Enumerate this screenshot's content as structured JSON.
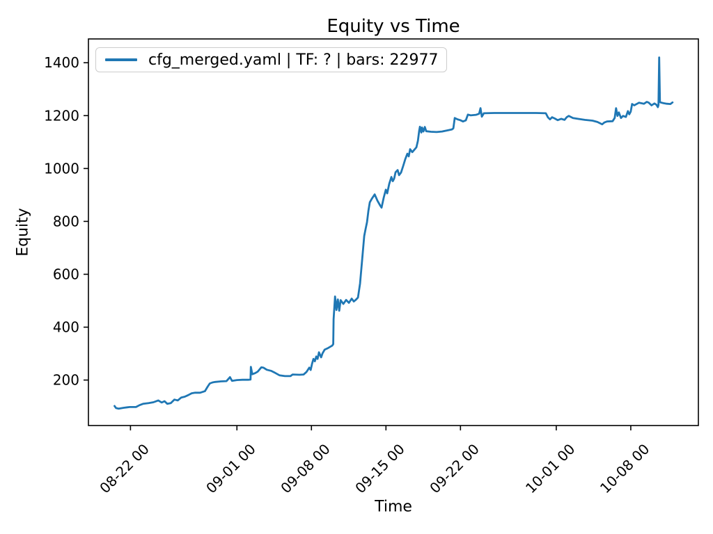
{
  "chart_data": {
    "type": "line",
    "title": "Equity vs Time",
    "xlabel": "Time",
    "ylabel": "Equity",
    "grid": false,
    "line_color": "#1f77b4",
    "legend": {
      "position": "upper left",
      "entries": [
        {
          "label": "cfg_merged.yaml | TF: ? | bars: 22977",
          "color": "#1f77b4"
        }
      ]
    },
    "x_axis": {
      "unit": "days since 08-22 00:00",
      "range": [
        -3.95,
        53.35
      ],
      "tick_rotation_deg": 45,
      "ticks": [
        {
          "d": 0,
          "label": "08-22 00"
        },
        {
          "d": 10,
          "label": "09-01 00"
        },
        {
          "d": 17,
          "label": "09-08 00"
        },
        {
          "d": 24,
          "label": "09-15 00"
        },
        {
          "d": 31,
          "label": "09-22 00"
        },
        {
          "d": 40,
          "label": "10-01 00"
        },
        {
          "d": 47,
          "label": "10-08 00"
        }
      ]
    },
    "y_axis": {
      "range": [
        28,
        1490
      ],
      "ticks": [
        200,
        400,
        600,
        800,
        1000,
        1200,
        1400
      ]
    },
    "series": [
      {
        "name": "cfg_merged.yaml | TF: ? | bars: 22977",
        "color": "#1f77b4",
        "points": [
          [
            -1.5,
            102
          ],
          [
            -1.35,
            94
          ],
          [
            -1.11,
            92
          ],
          [
            -0.65,
            95
          ],
          [
            -0.3,
            97
          ],
          [
            -0.07,
            98
          ],
          [
            0.52,
            98
          ],
          [
            0.85,
            105
          ],
          [
            1.18,
            110
          ],
          [
            1.7,
            113
          ],
          [
            2.16,
            116
          ],
          [
            2.61,
            123
          ],
          [
            2.94,
            115
          ],
          [
            3.2,
            120
          ],
          [
            3.46,
            110
          ],
          [
            3.79,
            113
          ],
          [
            4.12,
            126
          ],
          [
            4.44,
            123
          ],
          [
            4.77,
            134
          ],
          [
            5.1,
            137
          ],
          [
            5.42,
            143
          ],
          [
            5.75,
            150
          ],
          [
            6.08,
            152
          ],
          [
            6.54,
            152
          ],
          [
            6.99,
            158
          ],
          [
            7.25,
            175
          ],
          [
            7.45,
            187
          ],
          [
            7.71,
            191
          ],
          [
            7.97,
            193
          ],
          [
            8.5,
            195
          ],
          [
            9.02,
            196
          ],
          [
            9.35,
            211
          ],
          [
            9.54,
            197
          ],
          [
            10.0,
            200
          ],
          [
            10.52,
            201
          ],
          [
            11.05,
            201
          ],
          [
            11.28,
            202
          ],
          [
            11.31,
            250
          ],
          [
            11.44,
            222
          ],
          [
            11.7,
            226
          ],
          [
            11.96,
            232
          ],
          [
            12.29,
            248
          ],
          [
            12.48,
            247
          ],
          [
            12.81,
            239
          ],
          [
            13.2,
            235
          ],
          [
            13.59,
            227
          ],
          [
            13.99,
            218
          ],
          [
            14.51,
            215
          ],
          [
            15.03,
            215
          ],
          [
            15.23,
            221
          ],
          [
            15.88,
            220
          ],
          [
            16.27,
            221
          ],
          [
            16.54,
            231
          ],
          [
            16.8,
            247
          ],
          [
            16.93,
            238
          ],
          [
            17.06,
            262
          ],
          [
            17.19,
            280
          ],
          [
            17.32,
            271
          ],
          [
            17.45,
            289
          ],
          [
            17.58,
            280
          ],
          [
            17.71,
            305
          ],
          [
            17.91,
            286
          ],
          [
            18.04,
            301
          ],
          [
            18.24,
            315
          ],
          [
            18.56,
            321
          ],
          [
            18.95,
            330
          ],
          [
            19.05,
            336
          ],
          [
            19.08,
            430
          ],
          [
            19.22,
            516
          ],
          [
            19.35,
            465
          ],
          [
            19.48,
            505
          ],
          [
            19.61,
            462
          ],
          [
            19.74,
            502
          ],
          [
            20.0,
            488
          ],
          [
            20.26,
            503
          ],
          [
            20.52,
            492
          ],
          [
            20.78,
            508
          ],
          [
            20.98,
            497
          ],
          [
            21.18,
            504
          ],
          [
            21.37,
            512
          ],
          [
            21.57,
            565
          ],
          [
            21.76,
            655
          ],
          [
            21.96,
            745
          ],
          [
            22.09,
            772
          ],
          [
            22.22,
            797
          ],
          [
            22.35,
            840
          ],
          [
            22.48,
            872
          ],
          [
            22.68,
            886
          ],
          [
            22.94,
            902
          ],
          [
            23.2,
            878
          ],
          [
            23.46,
            860
          ],
          [
            23.59,
            852
          ],
          [
            23.79,
            890
          ],
          [
            23.99,
            920
          ],
          [
            24.12,
            906
          ],
          [
            24.31,
            942
          ],
          [
            24.51,
            968
          ],
          [
            24.64,
            952
          ],
          [
            24.77,
            962
          ],
          [
            24.9,
            986
          ],
          [
            25.1,
            994
          ],
          [
            25.23,
            975
          ],
          [
            25.42,
            985
          ],
          [
            25.62,
            1010
          ],
          [
            25.82,
            1036
          ],
          [
            26.01,
            1056
          ],
          [
            26.14,
            1046
          ],
          [
            26.27,
            1073
          ],
          [
            26.47,
            1062
          ],
          [
            26.67,
            1071
          ],
          [
            26.86,
            1080
          ],
          [
            27.0,
            1105
          ],
          [
            27.12,
            1142
          ],
          [
            27.19,
            1158
          ],
          [
            27.32,
            1136
          ],
          [
            27.39,
            1155
          ],
          [
            27.52,
            1140
          ],
          [
            27.65,
            1157
          ],
          [
            27.78,
            1141
          ],
          [
            28.24,
            1139
          ],
          [
            28.76,
            1138
          ],
          [
            29.28,
            1140
          ],
          [
            29.74,
            1144
          ],
          [
            30.2,
            1148
          ],
          [
            30.33,
            1152
          ],
          [
            30.46,
            1191
          ],
          [
            30.72,
            1186
          ],
          [
            30.98,
            1183
          ],
          [
            31.24,
            1178
          ],
          [
            31.5,
            1182
          ],
          [
            31.7,
            1204
          ],
          [
            31.96,
            1201
          ],
          [
            32.48,
            1203
          ],
          [
            32.75,
            1207
          ],
          [
            32.88,
            1228
          ],
          [
            33.01,
            1196
          ],
          [
            33.2,
            1209
          ],
          [
            34.18,
            1210
          ],
          [
            35.49,
            1210
          ],
          [
            36.8,
            1210
          ],
          [
            38.1,
            1210
          ],
          [
            39.02,
            1209
          ],
          [
            39.22,
            1193
          ],
          [
            39.41,
            1186
          ],
          [
            39.61,
            1194
          ],
          [
            39.87,
            1189
          ],
          [
            40.13,
            1183
          ],
          [
            40.46,
            1188
          ],
          [
            40.78,
            1184
          ],
          [
            40.98,
            1194
          ],
          [
            41.18,
            1199
          ],
          [
            41.57,
            1191
          ],
          [
            42.03,
            1188
          ],
          [
            42.68,
            1184
          ],
          [
            43.4,
            1181
          ],
          [
            43.86,
            1176
          ],
          [
            44.31,
            1167
          ],
          [
            44.51,
            1174
          ],
          [
            44.77,
            1178
          ],
          [
            45.29,
            1179
          ],
          [
            45.49,
            1191
          ],
          [
            45.62,
            1228
          ],
          [
            45.75,
            1199
          ],
          [
            45.88,
            1212
          ],
          [
            46.08,
            1191
          ],
          [
            46.27,
            1199
          ],
          [
            46.54,
            1195
          ],
          [
            46.73,
            1217
          ],
          [
            46.86,
            1205
          ],
          [
            46.99,
            1215
          ],
          [
            47.12,
            1244
          ],
          [
            47.32,
            1239
          ],
          [
            47.78,
            1249
          ],
          [
            48.24,
            1245
          ],
          [
            48.5,
            1252
          ],
          [
            48.69,
            1249
          ],
          [
            48.95,
            1239
          ],
          [
            49.22,
            1246
          ],
          [
            49.41,
            1241
          ],
          [
            49.54,
            1232
          ],
          [
            49.6,
            1240
          ],
          [
            49.67,
            1420
          ],
          [
            49.74,
            1252
          ],
          [
            49.8,
            1250
          ],
          [
            50.07,
            1247
          ],
          [
            50.39,
            1245
          ],
          [
            50.72,
            1244
          ],
          [
            50.92,
            1250
          ]
        ]
      }
    ]
  }
}
